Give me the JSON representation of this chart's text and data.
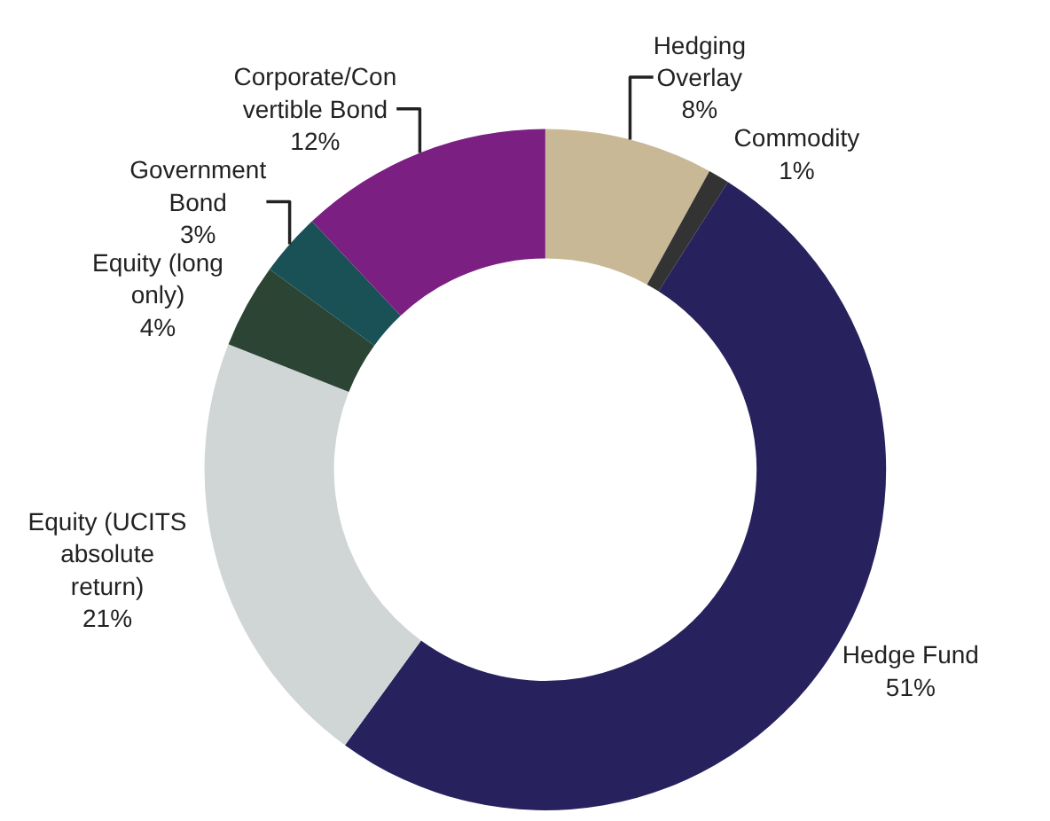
{
  "chart_data": {
    "type": "donut",
    "categories": [
      "Hedging\nOverlay",
      "Commodity",
      "Hedge Fund",
      "Equity (UCITS\nabsolute\nreturn)",
      "Equity (long\nonly)",
      "Government\nBond",
      "Corporate/Con\nvertible Bond"
    ],
    "values": [
      8,
      1,
      51,
      21,
      4,
      3,
      12
    ],
    "value_labels": [
      "8%",
      "1%",
      "51%",
      "21%",
      "4%",
      "3%",
      "12%"
    ],
    "colors": [
      "#c8b896",
      "#333333",
      "#27215e",
      "#d0d5d6",
      "#2b4434",
      "#1a5157",
      "#7b1f82"
    ],
    "legend": false
  }
}
